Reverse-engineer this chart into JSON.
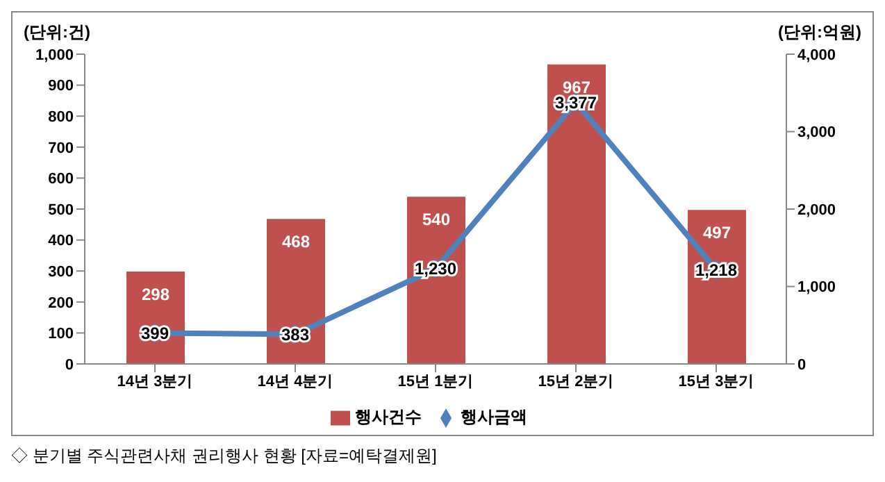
{
  "chart_data": {
    "type": "bar",
    "ylabel": "(단위:건)",
    "y2label": "(단위:억원)",
    "categories": [
      "14년 3분기",
      "14년 4분기",
      "15년 1분기",
      "15년 2분기",
      "15년 3분기"
    ],
    "series": [
      {
        "name": "행사건수",
        "color": "#c0504d",
        "values": [
          298,
          468,
          540,
          967,
          497
        ],
        "value_labels": [
          "298",
          "468",
          "540",
          "967",
          "497"
        ]
      },
      {
        "name": "행사금액",
        "type": "line",
        "axis": "y2",
        "color": "#4f81bd",
        "marker": "diamond",
        "values": [
          399,
          383,
          1230,
          3377,
          1218
        ],
        "value_labels": [
          "399",
          "383",
          "1,230",
          "3,377",
          "1,218"
        ]
      }
    ],
    "ylim": [
      0,
      1000
    ],
    "yticks": [
      0,
      100,
      200,
      300,
      400,
      500,
      600,
      700,
      800,
      900,
      {
        "value": 1000,
        "label": "1,000"
      }
    ],
    "y2lim": [
      0,
      4000
    ],
    "y2ticks": [
      0,
      {
        "value": 1000,
        "label": "1,000"
      },
      {
        "value": 2000,
        "label": "2,000"
      },
      {
        "value": 3000,
        "label": "3,000"
      },
      {
        "value": 4000,
        "label": "4,000"
      }
    ],
    "grid": false,
    "legend": "bottom",
    "annotations": [
      "◇ 분기별 주식관련사채 권리행사 현황 [자료=예탁결제원]"
    ]
  }
}
